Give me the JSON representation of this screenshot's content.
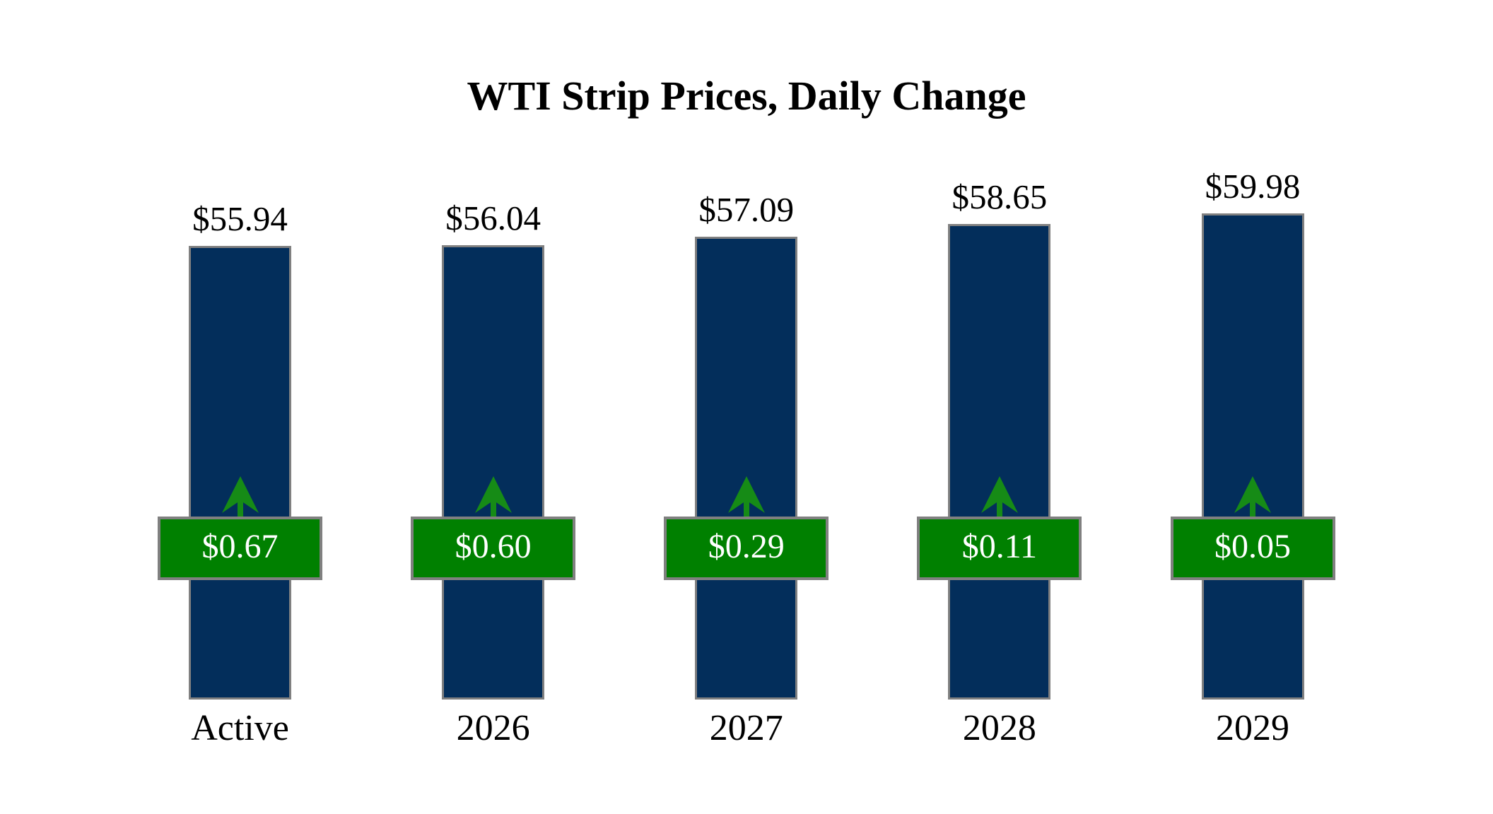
{
  "title": "WTI Strip Prices, Daily Change",
  "colors": {
    "background": "#ffffff",
    "bar": "#032e5b",
    "bar_border": "#808080",
    "change_box": "#008000",
    "change_box_border": "#808080",
    "arrow": "#168b16",
    "price_text": "#000000",
    "change_text": "#ffffff",
    "category_text": "#000000",
    "title_text": "#000000"
  },
  "chart_data": {
    "type": "bar",
    "title": "WTI Strip Prices, Daily Change",
    "categories": [
      "Active",
      "2026",
      "2027",
      "2028",
      "2029"
    ],
    "series": [
      {
        "name": "Strip Price",
        "values": [
          55.94,
          56.04,
          57.09,
          58.65,
          59.98
        ],
        "labels": [
          "$55.94",
          "$56.04",
          "$57.09",
          "$58.65",
          "$59.98"
        ]
      },
      {
        "name": "Daily Change",
        "values": [
          0.67,
          0.6,
          0.29,
          0.11,
          0.05
        ],
        "labels": [
          "$0.67",
          "$0.60",
          "$0.29",
          "$0.11",
          "$0.05"
        ]
      }
    ],
    "ylim": [
      0,
      60
    ],
    "grid": false,
    "legend": "none",
    "axes_visible": false,
    "annotations": "green up arrow above each daily-change badge indicating positive change",
    "bar_color": "#032e5b",
    "change_badge_color": "#008000"
  }
}
